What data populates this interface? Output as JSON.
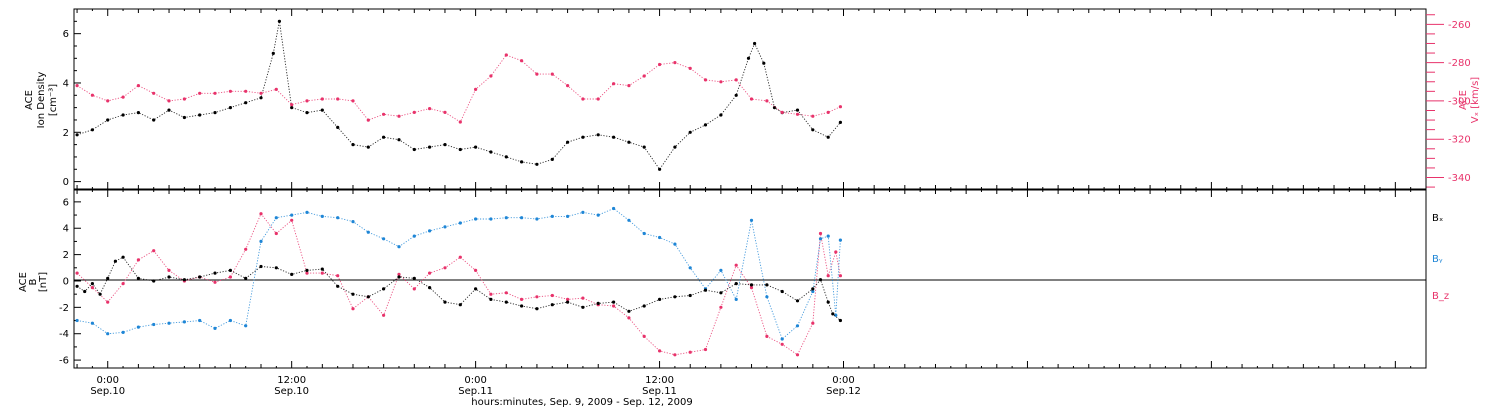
{
  "colors": {
    "black": "#000000",
    "red": "#e8336b",
    "blue": "#1f86d6",
    "axis": "#000000"
  },
  "x_axis": {
    "title": "hours:minutes, Sep. 9, 2009 - Sep. 12, 2009",
    "range_hours": [
      -2.2,
      86.0
    ],
    "ticks": [
      {
        "hours": 0,
        "time": "0:00",
        "date": "Sep.10"
      },
      {
        "hours": 12,
        "time": "12:00",
        "date": "Sep.10"
      },
      {
        "hours": 24,
        "time": "0:00",
        "date": "Sep.11"
      },
      {
        "hours": 36,
        "time": "12:00",
        "date": "Sep.11"
      },
      {
        "hours": 48,
        "time": "0:00",
        "date": "Sep.12"
      }
    ]
  },
  "top_panel": {
    "left_label_1": "ACE",
    "left_label_2": "Ion Density",
    "left_label_3": "[cm⁻³]",
    "right_label_1": "ACE",
    "right_label_2": "Vₓ [km/s]",
    "left_ticks": [
      "0",
      "2",
      "4",
      "6"
    ],
    "right_ticks": [
      "-260",
      "-280",
      "-300",
      "-320",
      "-340"
    ]
  },
  "bottom_panel": {
    "left_label_1": "ACE",
    "left_label_2": "B",
    "left_label_3": "[nT]",
    "left_ticks": [
      "-6",
      "-4",
      "-2",
      "0",
      "2",
      "4",
      "6"
    ],
    "legend": [
      "Bₓ",
      "Bᵧ",
      "B_z"
    ]
  },
  "chart_data": [
    {
      "type": "scatter",
      "title": "",
      "xlabel": "hours:minutes, Sep. 9, 2009 - Sep. 12, 2009",
      "x_unit": "hours since 2009-09-10 00:00 UT",
      "xlim": [
        -2.2,
        86.0
      ],
      "series": [
        {
          "axis": "left",
          "ylabel": "ACE Ion Density [cm⁻³]",
          "ylim": [
            -0.3,
            7.0
          ],
          "color": "#000000",
          "x": [
            -2.0,
            -1,
            0,
            1,
            2,
            3,
            4,
            5,
            6,
            7,
            8,
            9,
            10,
            10.8,
            11.2,
            12,
            13,
            14,
            15,
            16,
            17,
            18,
            19,
            20,
            21,
            22,
            23,
            24,
            25,
            26,
            27,
            28,
            29,
            30,
            31,
            32,
            33,
            34,
            35,
            36,
            37,
            38,
            39,
            40,
            41,
            41.8,
            42.2,
            42.8,
            43.5,
            44,
            45,
            46,
            47,
            47.8
          ],
          "y": [
            1.9,
            2.1,
            2.5,
            2.7,
            2.8,
            2.5,
            2.9,
            2.6,
            2.7,
            2.8,
            3.0,
            3.2,
            3.4,
            5.2,
            6.5,
            3.0,
            2.8,
            2.9,
            2.2,
            1.5,
            1.4,
            1.8,
            1.7,
            1.3,
            1.4,
            1.5,
            1.3,
            1.4,
            1.2,
            1.0,
            0.8,
            0.7,
            0.9,
            1.6,
            1.8,
            1.9,
            1.8,
            1.6,
            1.4,
            0.5,
            1.4,
            2.0,
            2.3,
            2.7,
            3.5,
            5.0,
            5.6,
            4.8,
            3.0,
            2.8,
            2.9,
            2.1,
            1.8,
            2.4
          ]
        },
        {
          "axis": "right",
          "ylabel": "ACE Vₓ [km/s]",
          "ylim": [
            -346,
            -252
          ],
          "color": "#e8336b",
          "x": [
            -2.0,
            -1,
            0,
            1,
            2,
            3,
            4,
            5,
            6,
            7,
            8,
            9,
            10,
            11,
            12,
            13,
            14,
            15,
            16,
            17,
            18,
            19,
            20,
            21,
            22,
            23,
            24,
            25,
            26,
            27,
            28,
            29,
            30,
            31,
            32,
            33,
            34,
            35,
            36,
            37,
            38,
            39,
            40,
            41,
            42,
            43,
            44,
            45,
            46,
            47,
            47.8
          ],
          "y": [
            -292,
            -297,
            -300,
            -298,
            -292,
            -296,
            -300,
            -299,
            -296,
            -296,
            -295,
            -295,
            -296,
            -294,
            -302,
            -300,
            -299,
            -299,
            -300,
            -310,
            -307,
            -308,
            -306,
            -304,
            -306,
            -311,
            -294,
            -287,
            -276,
            -279,
            -286,
            -286,
            -292,
            -299,
            -299,
            -291,
            -292,
            -287,
            -281,
            -280,
            -283,
            -289,
            -290,
            -289,
            -299,
            -300,
            -306,
            -307,
            -308,
            -306,
            -303
          ]
        }
      ]
    },
    {
      "type": "scatter",
      "title": "",
      "xlabel": "hours:minutes, Sep. 9, 2009 - Sep. 12, 2009",
      "x_unit": "hours since 2009-09-10 00:00 UT",
      "ylabel": "ACE B [nT]",
      "xlim": [
        -2.2,
        86.0
      ],
      "ylim": [
        -6.6,
        6.9
      ],
      "series": [
        {
          "name": "Bₓ",
          "color": "#000000",
          "x": [
            -2.0,
            -1.5,
            -1,
            -0.5,
            0,
            0.5,
            1,
            2,
            3,
            4,
            5,
            6,
            7,
            8,
            9,
            10,
            11,
            12,
            13,
            14,
            15,
            16,
            17,
            18,
            19,
            20,
            21,
            22,
            23,
            24,
            25,
            26,
            27,
            28,
            29,
            30,
            31,
            32,
            33,
            34,
            35,
            36,
            37,
            38,
            39,
            40,
            41,
            42,
            43,
            44,
            45,
            46,
            46.5,
            47,
            47.3,
            47.8
          ],
          "y": [
            -0.4,
            -0.8,
            -0.2,
            -1.0,
            0.2,
            1.5,
            1.8,
            0.2,
            0.0,
            0.3,
            0.1,
            0.3,
            0.6,
            0.8,
            0.2,
            1.1,
            1.0,
            0.5,
            0.8,
            0.9,
            -0.4,
            -1.0,
            -1.2,
            -0.6,
            0.3,
            0.2,
            -0.5,
            -1.6,
            -1.8,
            -0.6,
            -1.4,
            -1.6,
            -1.9,
            -2.1,
            -1.8,
            -1.6,
            -2.0,
            -1.7,
            -1.6,
            -2.3,
            -1.9,
            -1.4,
            -1.2,
            -1.1,
            -0.7,
            -0.9,
            -0.2,
            -0.3,
            -0.3,
            -0.8,
            -1.5,
            -0.6,
            0.1,
            -1.6,
            -2.5,
            -3.0
          ]
        },
        {
          "name": "Bᵧ",
          "color": "#1f86d6",
          "x": [
            -2.0,
            -1,
            0,
            1,
            2,
            3,
            4,
            5,
            6,
            7,
            8,
            9,
            10,
            11,
            12,
            13,
            14,
            15,
            16,
            17,
            18,
            19,
            20,
            21,
            22,
            23,
            24,
            25,
            26,
            27,
            28,
            29,
            30,
            31,
            32,
            33,
            34,
            35,
            36,
            37,
            38,
            39,
            40,
            41,
            42,
            43,
            44,
            45,
            46,
            46.5,
            47,
            47.5,
            47.8
          ],
          "y": [
            -3.0,
            -3.2,
            -4.0,
            -3.9,
            -3.5,
            -3.3,
            -3.2,
            -3.1,
            -3.0,
            -3.6,
            -3.0,
            -3.4,
            3.0,
            4.8,
            5.0,
            5.2,
            4.9,
            4.8,
            4.5,
            3.7,
            3.2,
            2.6,
            3.4,
            3.8,
            4.1,
            4.4,
            4.7,
            4.7,
            4.8,
            4.8,
            4.7,
            4.9,
            4.9,
            5.2,
            5.0,
            5.5,
            4.6,
            3.6,
            3.3,
            2.8,
            1.0,
            -0.6,
            0.8,
            -1.4,
            4.6,
            -1.2,
            -4.4,
            -3.4,
            -0.8,
            3.2,
            3.4,
            -2.6,
            3.1
          ]
        },
        {
          "name": "B_z",
          "color": "#e8336b",
          "x": [
            -2.0,
            -1,
            0,
            1,
            2,
            3,
            4,
            5,
            6,
            7,
            8,
            9,
            10,
            11,
            12,
            13,
            14,
            15,
            16,
            17,
            18,
            19,
            20,
            21,
            22,
            23,
            24,
            25,
            26,
            27,
            28,
            29,
            30,
            31,
            32,
            33,
            34,
            35,
            36,
            37,
            38,
            39,
            40,
            41,
            42,
            43,
            44,
            45,
            46,
            46.5,
            47,
            47.5,
            47.8
          ],
          "y": [
            0.6,
            -0.5,
            -1.6,
            -0.2,
            1.6,
            2.3,
            0.8,
            0.0,
            0.3,
            -0.1,
            0.3,
            2.4,
            5.1,
            3.6,
            4.6,
            0.6,
            0.6,
            0.4,
            -2.1,
            -1.2,
            -2.6,
            0.5,
            -0.6,
            0.6,
            1.0,
            1.8,
            0.8,
            -1.0,
            -0.9,
            -1.4,
            -1.2,
            -1.1,
            -1.4,
            -1.3,
            -1.8,
            -1.9,
            -2.8,
            -4.2,
            -5.3,
            -5.6,
            -5.4,
            -5.2,
            -2.0,
            1.2,
            -0.5,
            -4.2,
            -4.8,
            -5.6,
            -3.2,
            3.6,
            0.4,
            2.2,
            0.4
          ]
        }
      ]
    }
  ]
}
